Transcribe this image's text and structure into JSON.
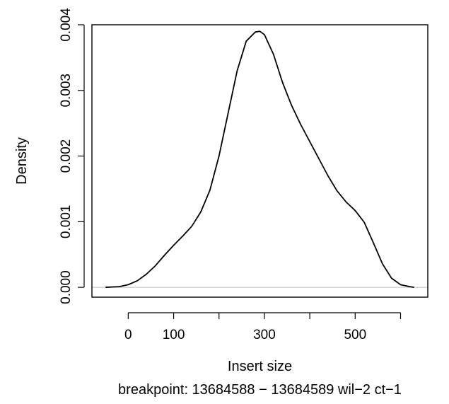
{
  "chart_data": {
    "type": "line",
    "title": "",
    "xlabel": "Insert size",
    "subtitle": "breakpoint: 13684588 − 13684589 wil−2 ct−1",
    "ylabel": "Density",
    "xlim": [
      -80,
      660
    ],
    "ylim": [
      -0.00015,
      0.004
    ],
    "x_ticks": [
      0,
      100,
      200,
      300,
      400,
      500,
      600
    ],
    "x_tick_labels": [
      "0",
      "100",
      "",
      "300",
      "",
      "500",
      ""
    ],
    "y_ticks": [
      0.0,
      0.001,
      0.002,
      0.003,
      0.004
    ],
    "y_tick_labels": [
      "0.000",
      "0.001",
      "0.002",
      "0.003",
      "0.004"
    ],
    "baseline": 0,
    "grid": false,
    "series": [
      {
        "x": [
          -50,
          -20,
          0,
          20,
          40,
          60,
          80,
          100,
          120,
          140,
          160,
          180,
          200,
          220,
          240,
          260,
          280,
          290,
          300,
          320,
          340,
          360,
          380,
          400,
          420,
          440,
          460,
          480,
          500,
          520,
          540,
          560,
          580,
          600,
          620,
          630
        ],
        "y": [
          0.0,
          1e-05,
          4e-05,
          0.0001,
          0.0002,
          0.00033,
          0.00049,
          0.00064,
          0.00078,
          0.00093,
          0.00115,
          0.00148,
          0.002,
          0.00265,
          0.0033,
          0.00375,
          0.00389,
          0.0039,
          0.00385,
          0.00355,
          0.00312,
          0.00277,
          0.00248,
          0.00222,
          0.00196,
          0.0017,
          0.00147,
          0.0013,
          0.00117,
          0.00099,
          0.00068,
          0.00036,
          0.00014,
          4e-05,
          1e-05,
          0.0
        ]
      }
    ]
  }
}
